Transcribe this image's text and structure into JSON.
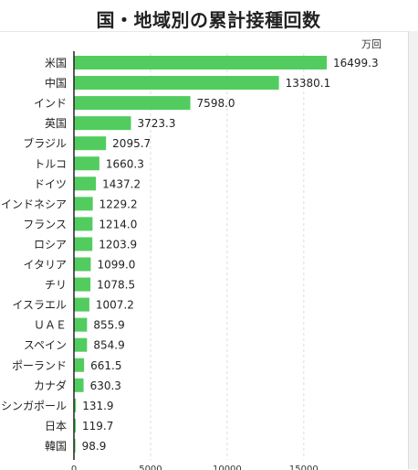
{
  "title": "国・地域別の累計接種回数",
  "unit": "万回",
  "colors": {
    "bar": "#52cc5f",
    "axis": "#222222",
    "grid": "#dddddd"
  },
  "chart_data": {
    "type": "bar",
    "orientation": "horizontal",
    "title": "国・地域別の累計接種回数",
    "xlabel": "",
    "ylabel": "",
    "unit": "万回",
    "xlim": [
      0,
      17500
    ],
    "xticks": [
      "0",
      "5000",
      "10000",
      "15000"
    ],
    "grid": "vertical dashed",
    "categories": [
      "米国",
      "中国",
      "インド",
      "英国",
      "ブラジル",
      "トルコ",
      "ドイツ",
      "インドネシア",
      "フランス",
      "ロシア",
      "イタリア",
      "チリ",
      "イスラエル",
      "ＵＡＥ",
      "スペイン",
      "ポーランド",
      "カナダ",
      "シンガポール",
      "日本",
      "韓国"
    ],
    "values": [
      16499.3,
      13380.1,
      7598.0,
      3723.3,
      2095.7,
      1660.3,
      1437.2,
      1229.2,
      1214.0,
      1203.9,
      1099.0,
      1078.5,
      1007.2,
      855.9,
      854.9,
      661.5,
      630.3,
      131.9,
      119.7,
      98.9
    ],
    "value_labels": [
      "16499.3",
      "13380.1",
      "7598.0",
      "3723.3",
      "2095.7",
      "1660.3",
      "1437.2",
      "1229.2",
      "1214.0",
      "1203.9",
      "1099.0",
      "1078.5",
      "1007.2",
      "855.9",
      "854.9",
      "661.5",
      "630.3",
      "131.9",
      "119.7",
      "98.9"
    ]
  }
}
